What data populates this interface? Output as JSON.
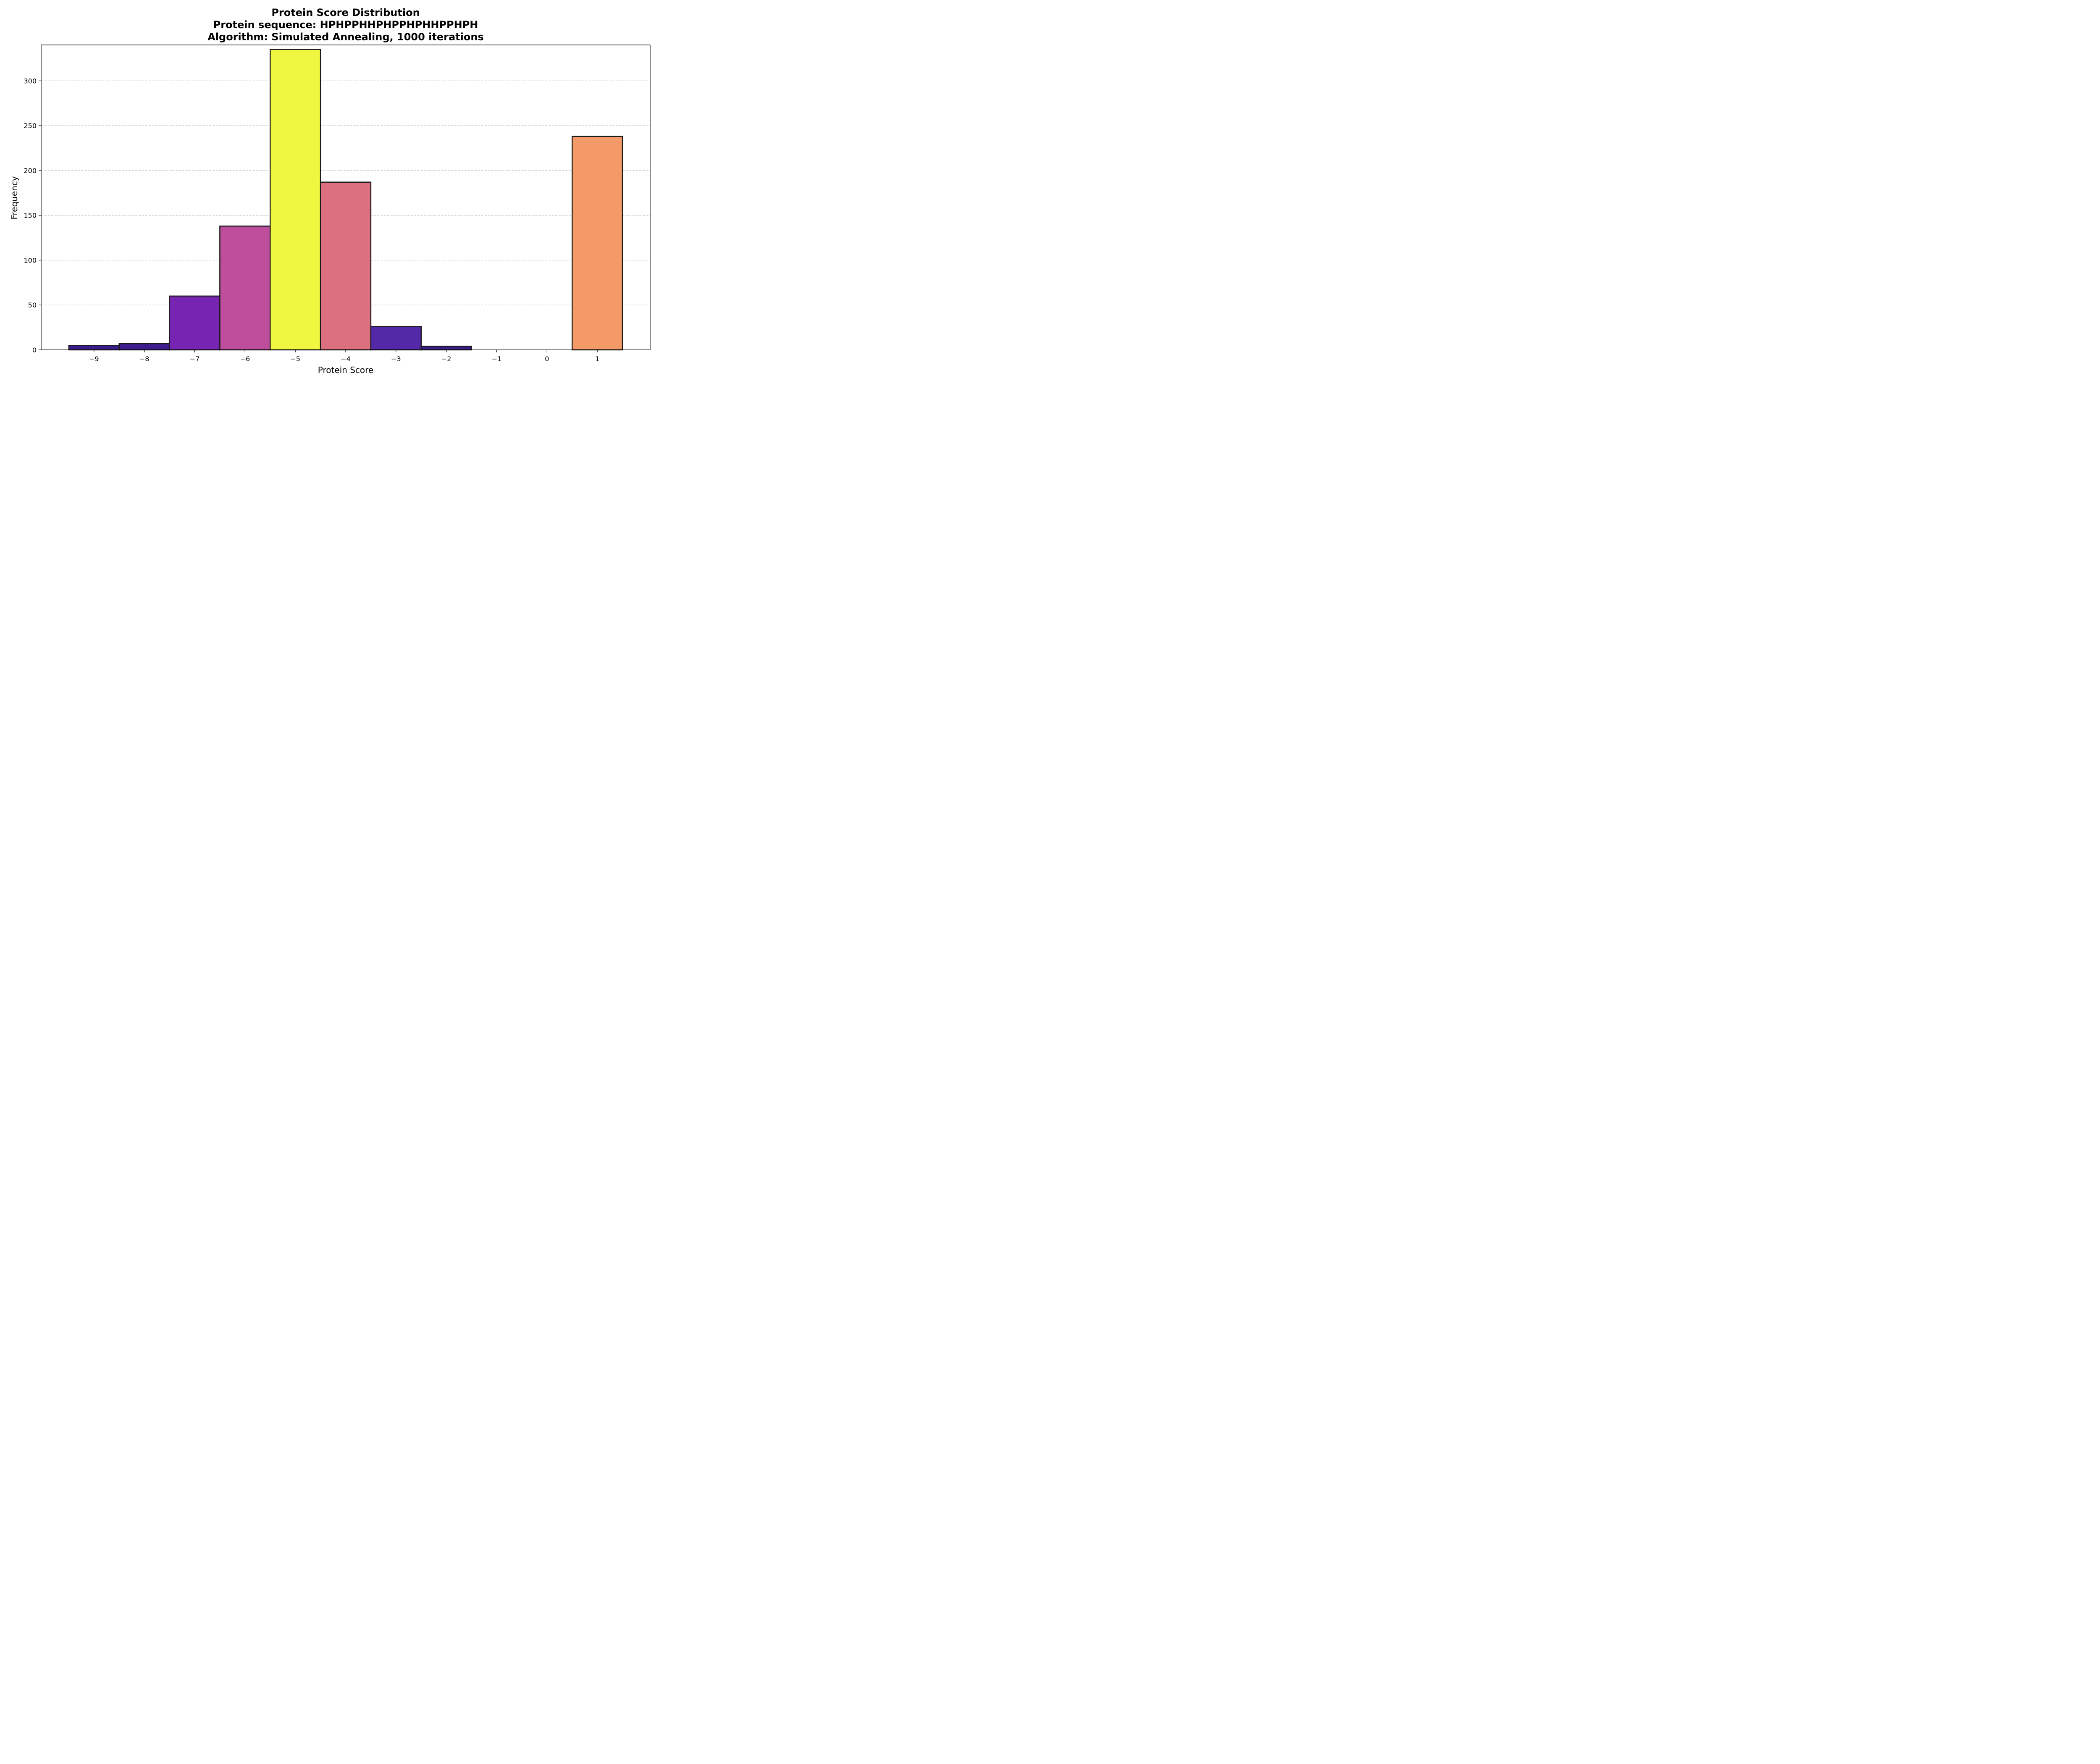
{
  "chart_data": {
    "type": "bar",
    "title_lines": [
      "Protein Score Distribution",
      "Protein sequence: HPHPPHHPHPPHPHHPPHPH",
      "Algorithm: Simulated Annealing, 1000 iterations"
    ],
    "xlabel": "Protein Score",
    "ylabel": "Frequency",
    "xlim": [
      -10.05,
      2.05
    ],
    "ylim": [
      0,
      340
    ],
    "x_ticks": [
      -9,
      -8,
      -7,
      -6,
      -5,
      -4,
      -3,
      -2,
      -1,
      0,
      1
    ],
    "x_tick_labels": [
      "−9",
      "−8",
      "−7",
      "−6",
      "−5",
      "−4",
      "−3",
      "−2",
      "−1",
      "0",
      "1"
    ],
    "y_ticks": [
      0,
      50,
      100,
      150,
      200,
      250,
      300
    ],
    "y_tick_labels": [
      "0",
      "50",
      "100",
      "150",
      "200",
      "250",
      "300"
    ],
    "grid": "y-dashed",
    "bin_width": 1,
    "bins": [
      {
        "x": -9,
        "value": 5,
        "color": "#3b1c8c"
      },
      {
        "x": -8,
        "value": 7,
        "color": "#3d1d90"
      },
      {
        "x": -7,
        "value": 60,
        "color": "#7824b3"
      },
      {
        "x": -6,
        "value": 138,
        "color": "#be4e9c"
      },
      {
        "x": -5,
        "value": 335,
        "color": "#f0f740"
      },
      {
        "x": -4,
        "value": 187,
        "color": "#dc707f"
      },
      {
        "x": -3,
        "value": 26,
        "color": "#5429a8"
      },
      {
        "x": -2,
        "value": 4,
        "color": "#3a1c8b"
      },
      {
        "x": -1,
        "value": 0,
        "color": "#30188a"
      },
      {
        "x": 0,
        "value": 0,
        "color": "#30188a"
      },
      {
        "x": 1,
        "value": 238,
        "color": "#f39a68"
      }
    ],
    "edge_color": "#1a1a1a",
    "grid_color": "#b0b0b0"
  }
}
